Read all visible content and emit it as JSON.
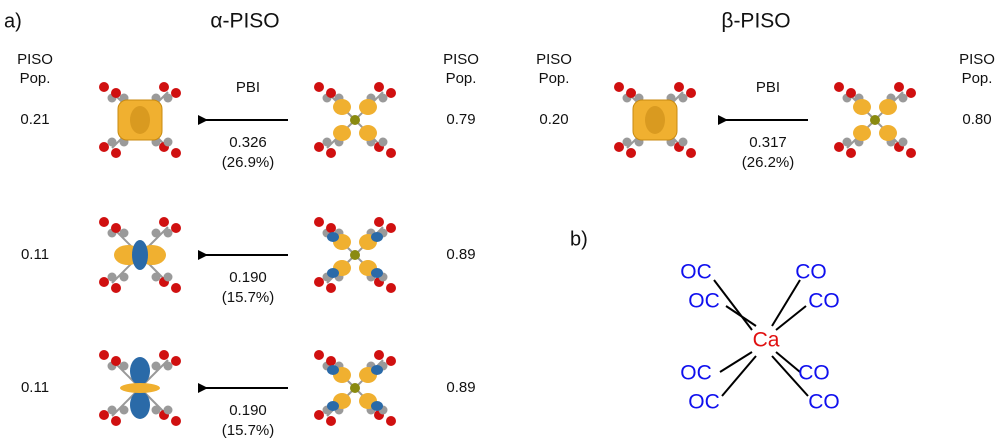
{
  "panel_a": {
    "label": "a)",
    "alpha": {
      "title": "α-PISO",
      "left_header": [
        "PISO",
        "Pop."
      ],
      "right_header": [
        "PISO",
        "Pop."
      ],
      "bond_label": "PBI",
      "rows": [
        {
          "left_pop": "0.21",
          "pbi": "0.326",
          "percent": "(26.9%)",
          "right_pop": "0.79"
        },
        {
          "left_pop": "0.11",
          "pbi": "0.190",
          "percent": "(15.7%)",
          "right_pop": "0.89"
        },
        {
          "left_pop": "0.11",
          "pbi": "0.190",
          "percent": "(15.7%)",
          "right_pop": "0.89"
        }
      ]
    },
    "beta": {
      "title": "β-PISO",
      "left_header": [
        "PISO",
        "Pop."
      ],
      "right_header": [
        "PISO",
        "Pop."
      ],
      "bond_label": "PBI",
      "rows": [
        {
          "left_pop": "0.20",
          "pbi": "0.317",
          "percent": "(26.2%)",
          "right_pop": "0.80"
        }
      ]
    }
  },
  "panel_b": {
    "label": "b)",
    "center": "Ca",
    "ligands": [
      "OC",
      "OC",
      "CO",
      "CO",
      "OC",
      "OC",
      "CO",
      "CO"
    ]
  }
}
